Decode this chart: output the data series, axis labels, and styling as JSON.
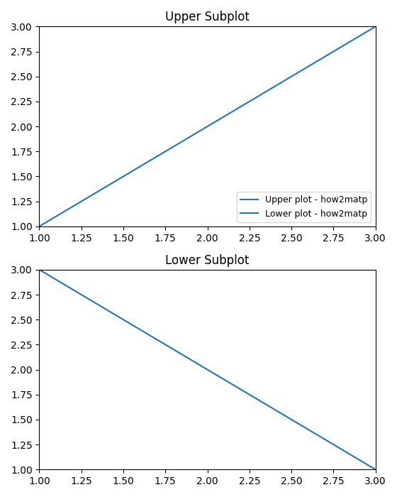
{
  "x_start": 1.0,
  "x_end": 3.0,
  "upper_title": "Upper Subplot",
  "lower_title": "Lower Subplot",
  "upper_label": "Upper plot - how2matp",
  "lower_label": "Lower plot - how2matp",
  "line_color": "#1f77b4",
  "xlim_upper": [
    1.0,
    3.0
  ],
  "xlim_lower": [
    1.0,
    3.0
  ],
  "ylim": [
    1.0,
    3.0
  ],
  "figsize": [
    5.6,
    7.0
  ],
  "dpi": 100
}
